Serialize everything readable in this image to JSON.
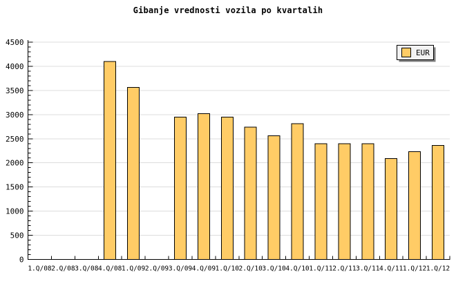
{
  "chart_data": {
    "type": "bar",
    "title": "Gibanje vrednosti vozila po kvartalih",
    "categories": [
      "1.Q/08",
      "2.Q/08",
      "3.Q/08",
      "4.Q/08",
      "1.Q/09",
      "2.Q/09",
      "3.Q/09",
      "4.Q/09",
      "1.Q/10",
      "2.Q/10",
      "3.Q/10",
      "4.Q/10",
      "1.Q/11",
      "2.Q/11",
      "3.Q/11",
      "4.Q/11",
      "1.Q/12",
      "1.Q/12"
    ],
    "values": [
      0,
      0,
      0,
      4100,
      3560,
      0,
      2950,
      3020,
      2950,
      2740,
      2560,
      2810,
      2400,
      2400,
      2400,
      2090,
      2230,
      2360
    ],
    "series_name": "EUR",
    "xlabel": "",
    "ylabel": "",
    "ylim": [
      0,
      4500
    ],
    "ytick_major": 500,
    "ytick_minor": 100,
    "grid": "horizontal-major",
    "legend_position": "top-right",
    "colors": {
      "bar_fill": "#FFCC66",
      "bar_border": "#000000",
      "grid_line": "#DCDCDC",
      "axis": "#000000",
      "legend_bg": "#F2F2F2",
      "legend_border": "#000000",
      "legend_shadow": "#808080",
      "background": "#FFFFFF"
    }
  }
}
